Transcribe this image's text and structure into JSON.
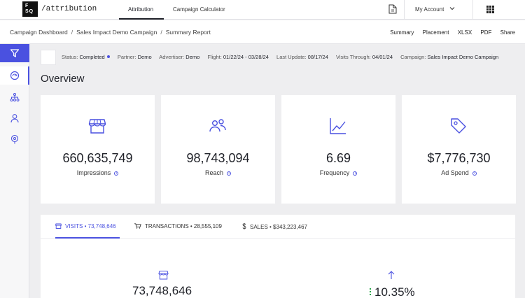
{
  "header": {
    "logo_line1": "F",
    "logo_line2": "SQ",
    "brand": "/attribution",
    "tabs": [
      {
        "label": "Attribution"
      },
      {
        "label": "Campaign Calculator"
      }
    ],
    "account_label": "My Account"
  },
  "breadcrumb": {
    "items": [
      "Campaign Dashboard",
      "Sales Impact Demo Campaign",
      "Summary Report"
    ],
    "separator": "/"
  },
  "actions": [
    "Summary",
    "Placement",
    "XLSX",
    "PDF",
    "Share"
  ],
  "status": {
    "status_label": "Status:",
    "status_value": "Completed",
    "partner_label": "Partner:",
    "partner_value": "Demo",
    "advertiser_label": "Advertiser:",
    "advertiser_value": "Demo",
    "flight_label": "Flight:",
    "flight_value": "01/22/24 - 03/28/24",
    "last_update_label": "Last Update:",
    "last_update_value": "08/17/24",
    "visits_through_label": "Visits Through:",
    "visits_through_value": "04/01/24",
    "campaign_label": "Campaign:",
    "campaign_value": "Sales Impact Demo Campaign"
  },
  "overview": {
    "title": "Overview",
    "cards": [
      {
        "icon": "store-icon",
        "value": "660,635,749",
        "label": "Impressions"
      },
      {
        "icon": "people-icon",
        "value": "98,743,094",
        "label": "Reach"
      },
      {
        "icon": "trend-chart-icon",
        "value": "6.69",
        "label": "Frequency"
      },
      {
        "icon": "price-tag-icon",
        "value": "$7,776,730",
        "label": "Ad Spend"
      }
    ]
  },
  "metrics_panel": {
    "tabs": [
      {
        "label": "VISITS • 73,748,646",
        "icon": "store-icon"
      },
      {
        "label": "TRANSACTIONS • 28,555,109",
        "icon": "cart-icon"
      },
      {
        "label": "SALES • $343,223,467",
        "icon": "dollar-icon"
      }
    ],
    "visits_value": "73,748,646",
    "lift_value": "10.35%"
  },
  "colors": {
    "accent": "#4a51e0",
    "positive": "#2aa84a",
    "background": "#eeeef0"
  }
}
